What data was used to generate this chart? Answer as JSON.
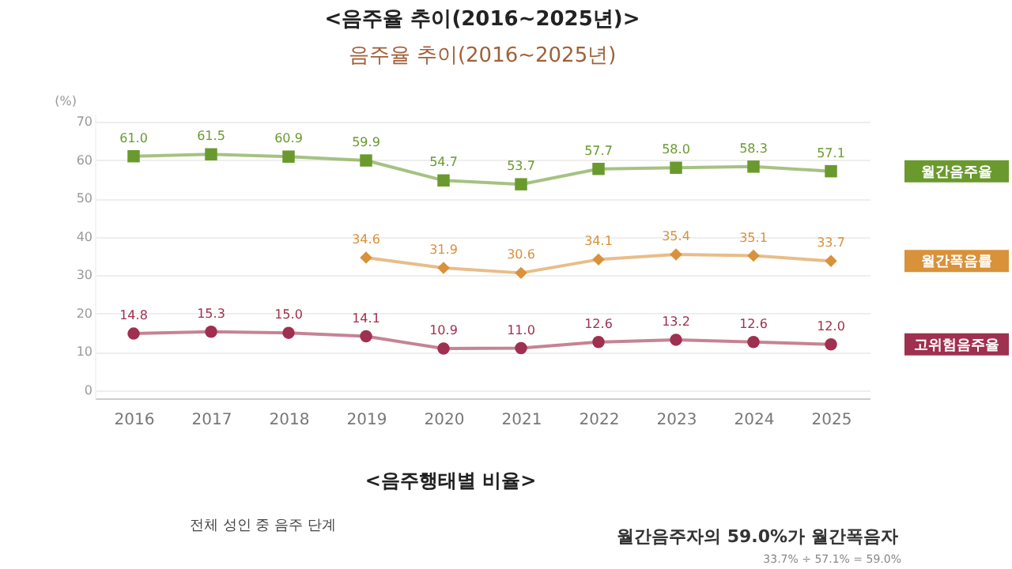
{
  "chart_data": {
    "type": "line",
    "title": "<음주율 추이(2016~2025년)>",
    "subtitle": "음주율 추이(2016~2025년)",
    "ylabel": "(%)",
    "categories": [
      "2016",
      "2017",
      "2018",
      "2019",
      "2020",
      "2021",
      "2022",
      "2023",
      "2024",
      "2025"
    ],
    "series": [
      {
        "name": "월간음주율",
        "color": "#6a9a2e",
        "marker": "square",
        "values": [
          61.0,
          61.5,
          60.9,
          59.9,
          54.7,
          53.7,
          57.7,
          58.0,
          58.3,
          57.1
        ],
        "value_labels": [
          "61.0",
          "61.5",
          "60.9",
          "59.9",
          "54.7",
          "53.7",
          "57.7",
          "58.0",
          "58.3",
          "57.1"
        ]
      },
      {
        "name": "월간폭음률",
        "color": "#d9913a",
        "marker": "diamond",
        "values": [
          null,
          null,
          null,
          34.6,
          31.9,
          30.6,
          34.1,
          35.4,
          35.1,
          33.7
        ],
        "value_labels": [
          null,
          null,
          null,
          "34.6",
          "31.9",
          "30.6",
          "34.1",
          "35.4",
          "35.1",
          "33.7"
        ]
      },
      {
        "name": "고위험음주율",
        "color": "#a0304f",
        "marker": "circle",
        "values": [
          14.8,
          15.3,
          15.0,
          14.1,
          10.9,
          11.0,
          12.6,
          13.2,
          12.6,
          12.0
        ],
        "value_labels": [
          "14.8",
          "15.3",
          "15.0",
          "14.1",
          "10.9",
          "11.0",
          "12.6",
          "13.2",
          "12.6",
          "12.0"
        ]
      }
    ],
    "ylim": [
      0,
      70
    ],
    "yticks": [
      0,
      10,
      20,
      30,
      40,
      50,
      60,
      70
    ],
    "grid": "y",
    "legend": false,
    "annotations": [
      "<음주행태별 비율>",
      "전체 성인 중 음주 단계",
      "월간음주자의 59.0%가 월간폭음자",
      "33.7% ÷ 57.1% = 59.0%"
    ]
  }
}
